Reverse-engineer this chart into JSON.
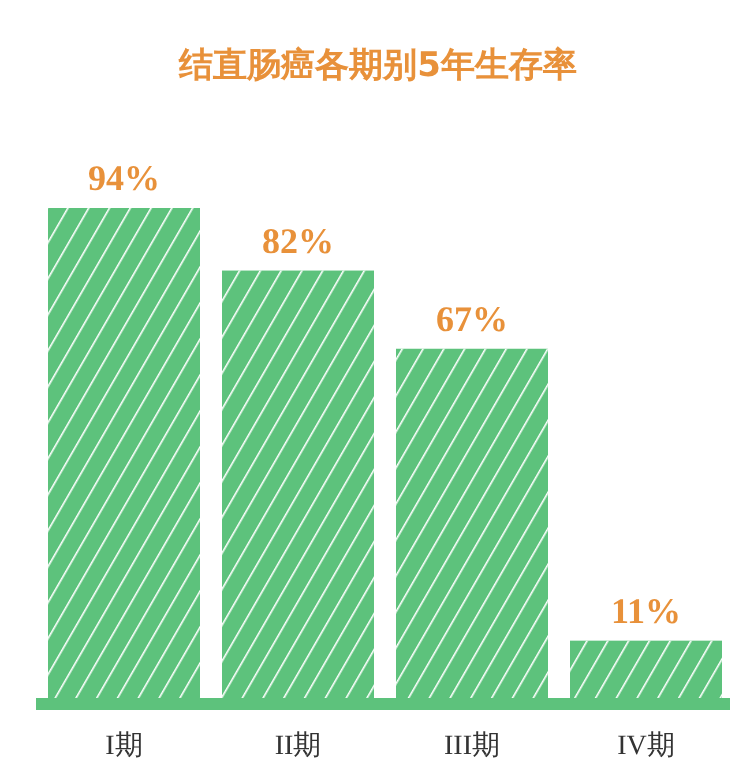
{
  "chart_data": {
    "type": "bar",
    "title": "结直肠癌各期别5年生存率",
    "categories": [
      "I期",
      "II期",
      "III期",
      "IV期"
    ],
    "values": [
      94,
      82,
      67,
      11
    ],
    "value_labels": [
      "94%",
      "82%",
      "67%",
      "11%"
    ],
    "color": "#5dc27c"
  }
}
